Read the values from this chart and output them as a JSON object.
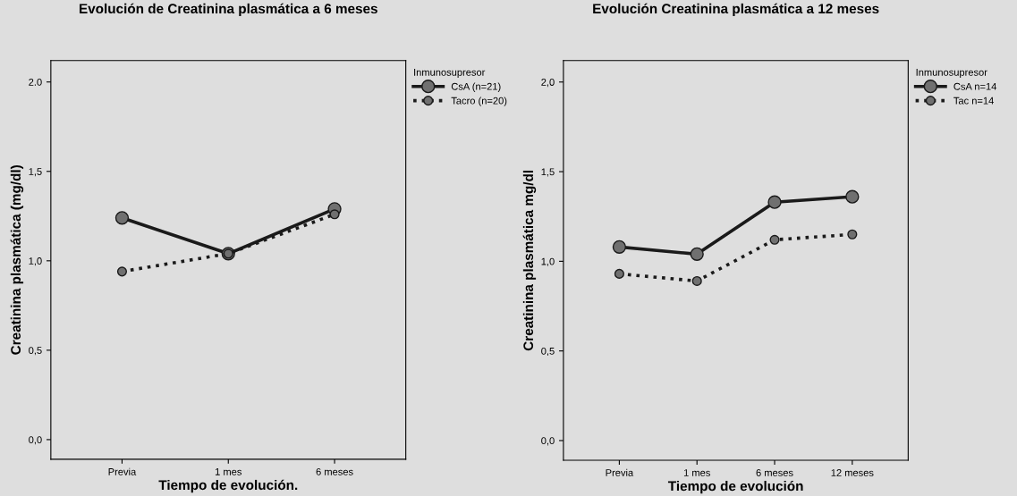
{
  "chart_data": [
    {
      "type": "line",
      "title": "Evolución de Creatinina plasmática a 6 meses",
      "xlabel": "Tiempo de evolución.",
      "ylabel": "Creatinina plasmática (mg/dl)",
      "legend_title": "Inmunosupresor",
      "legend": "right",
      "marker": "circle",
      "grid": false,
      "categories": [
        "Previa",
        "1 mes",
        "6 meses"
      ],
      "series": [
        {
          "name": "CsA (n=21)",
          "color": "#1a1a1a",
          "line_style": "solid",
          "values": [
            1.24,
            1.04,
            1.29
          ]
        },
        {
          "name": "Tacro (n=20)",
          "color": "#1a1a1a",
          "line_style": "dotted",
          "values": [
            0.94,
            1.04,
            1.26
          ]
        }
      ],
      "ylim": [
        -0.11,
        2.12
      ],
      "yticks": [
        {
          "value": 0,
          "label": "0,0"
        },
        {
          "value": 0.5,
          "label": "0,5"
        },
        {
          "value": 1,
          "label": "1,0"
        },
        {
          "value": 1.5,
          "label": "1,5"
        },
        {
          "value": 2,
          "label": "2.0"
        }
      ]
    },
    {
      "type": "line",
      "title": "Evolución Creatinina plasmática a 12 meses",
      "xlabel": "Tiempo de evolución",
      "ylabel": "Creatinina plasmática mg/dl",
      "legend_title": "Inmunosupresor",
      "legend": "right",
      "marker": "circle",
      "grid": false,
      "categories": [
        "Previa",
        "1 mes",
        "6 meses",
        "12 meses"
      ],
      "series": [
        {
          "name": "CsA n=14",
          "color": "#1a1a1a",
          "line_style": "solid",
          "values": [
            1.08,
            1.04,
            1.33,
            1.36
          ]
        },
        {
          "name": "Tac n=14",
          "color": "#1a1a1a",
          "line_style": "dotted",
          "values": [
            0.93,
            0.89,
            1.12,
            1.15
          ]
        }
      ],
      "ylim": [
        -0.11,
        2.12
      ],
      "yticks": [
        {
          "value": 0,
          "label": "0,0"
        },
        {
          "value": 0.5,
          "label": "0,5"
        },
        {
          "value": 1,
          "label": "1,0"
        },
        {
          "value": 1.5,
          "label": "1,5"
        },
        {
          "value": 2,
          "label": "2,0"
        }
      ]
    }
  ]
}
